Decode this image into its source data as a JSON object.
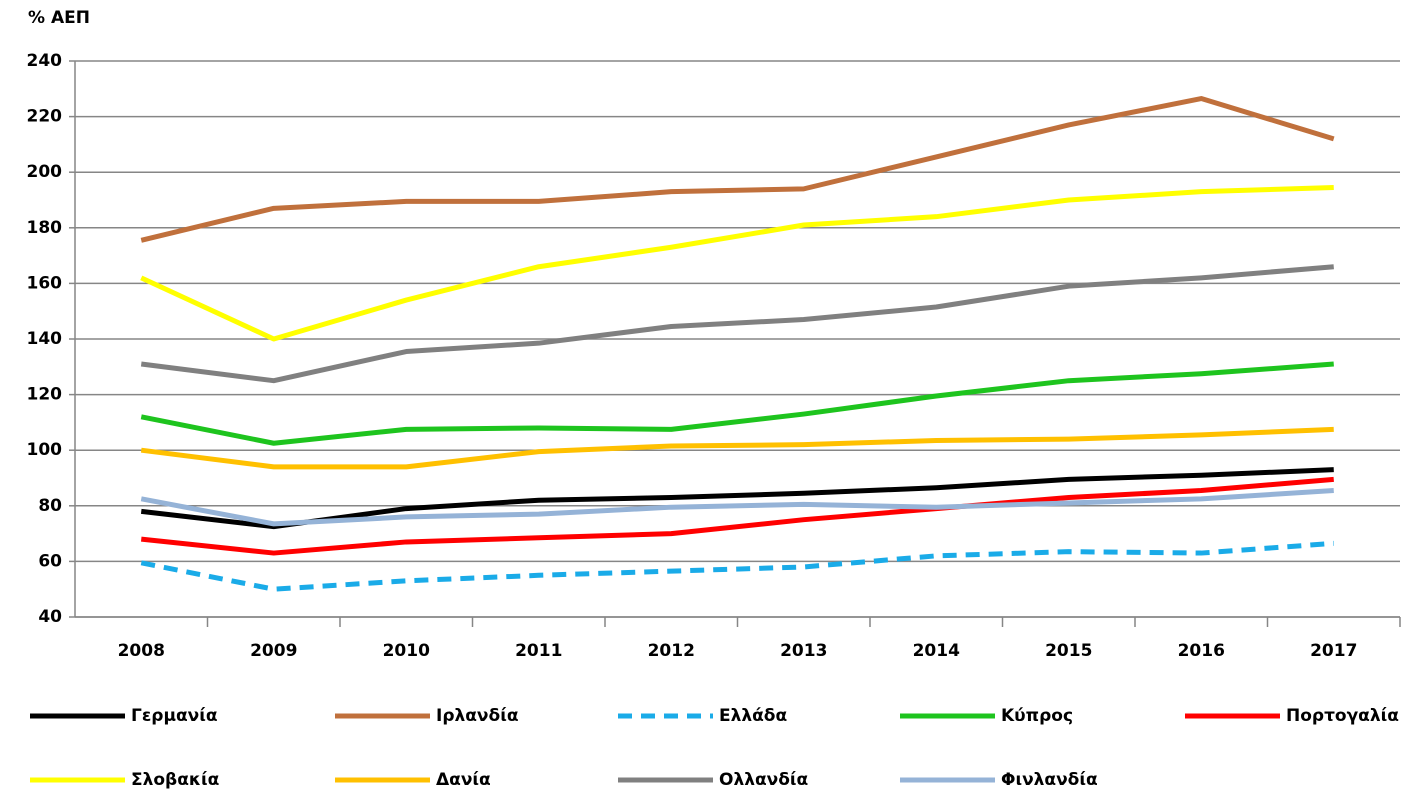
{
  "chart_data": {
    "type": "line",
    "y_label": "% ΑΕΠ",
    "categories": [
      "2008",
      "2009",
      "2010",
      "2011",
      "2012",
      "2013",
      "2014",
      "2015",
      "2016",
      "2017"
    ],
    "ylim": [
      40,
      240
    ],
    "yticks": [
      40,
      60,
      80,
      100,
      120,
      140,
      160,
      180,
      200,
      220,
      240
    ],
    "grid": true,
    "legend": "bottom",
    "series": [
      {
        "name": "Γερμανία",
        "color": "#000000",
        "values": [
          78,
          72.5,
          79,
          82,
          83,
          84.5,
          86.5,
          89.5,
          91,
          93
        ]
      },
      {
        "name": "Ιρλανδία",
        "color": "#c0703c",
        "values": [
          175.5,
          187,
          189.5,
          189.5,
          193,
          194,
          205.5,
          217,
          226.5,
          212
        ]
      },
      {
        "name": "Ελλάδα",
        "color": "#1aabe8",
        "dashed": true,
        "values": [
          59.5,
          50,
          53,
          55,
          56.5,
          58,
          62,
          63.5,
          63,
          66.5
        ]
      },
      {
        "name": "Κύπρος",
        "color": "#1ec41e",
        "values": [
          112,
          102.5,
          107.5,
          108,
          107.5,
          113,
          119.5,
          125,
          127.5,
          131
        ]
      },
      {
        "name": "Πορτογαλία",
        "color": "#ff0000",
        "values": [
          68,
          63,
          67,
          68.5,
          70,
          75,
          79,
          83,
          85.5,
          89.5
        ]
      },
      {
        "name": "Σλοβακία",
        "color": "#ffff00",
        "values": [
          162,
          140,
          154,
          166,
          173,
          181,
          184,
          190,
          193,
          194.5
        ]
      },
      {
        "name": "Δανία",
        "color": "#ffc000",
        "values": [
          100,
          94,
          94,
          99.5,
          101.5,
          102,
          103.5,
          104,
          105.5,
          107.5
        ]
      },
      {
        "name": "Ολλανδία",
        "color": "#808080",
        "values": [
          131,
          125,
          135.5,
          138.5,
          144.5,
          147,
          151.5,
          159,
          162,
          166
        ]
      },
      {
        "name": "Φινλανδία",
        "color": "#95b3d7",
        "values": [
          82.5,
          73.5,
          76,
          77,
          79.5,
          80.5,
          79.5,
          81,
          82.5,
          85.5
        ]
      }
    ]
  }
}
